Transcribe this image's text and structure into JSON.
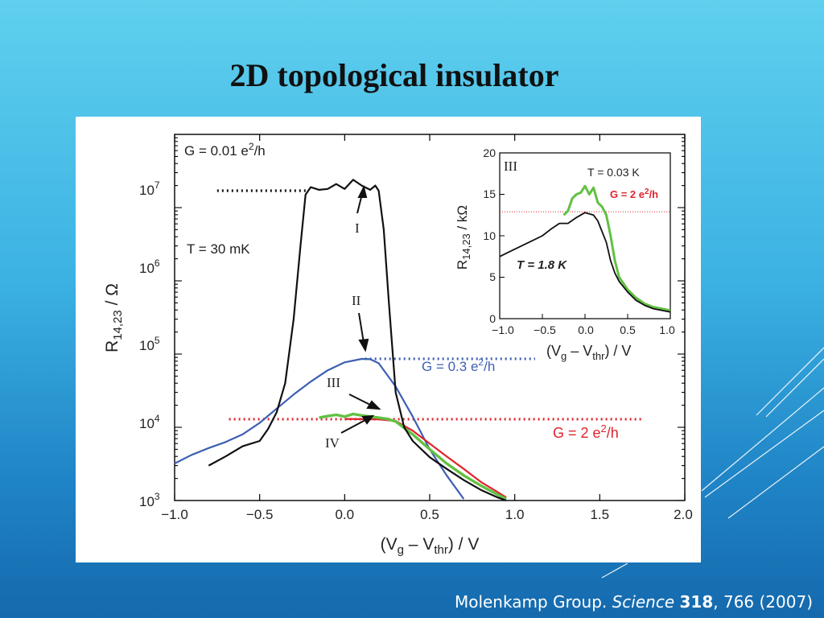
{
  "slide": {
    "title": "2D topological insulator",
    "citation": {
      "prefix": "Molenkamp Group. ",
      "journal": "Science",
      "volume": "318",
      "rest": ", 766 (2007)"
    }
  },
  "colors": {
    "background_top": "#5fd0ee",
    "background_bottom": "#1569ad",
    "curve_I": "#111111",
    "curve_II": "#3d5fb3",
    "curve_III": "#62c142",
    "curve_IV": "#e0242e",
    "annotation_red": "#e0242e",
    "annotation_blue": "#3d5fb3"
  },
  "chart_data": [
    {
      "type": "line",
      "yscale": "log",
      "xlabel_parts": [
        "(V",
        "g",
        " – V",
        "thr",
        ") / V"
      ],
      "ylabel_parts": [
        "R",
        "14,23",
        " / Ω"
      ],
      "xlim": [
        -1.0,
        2.0
      ],
      "ylim": [
        1000,
        100000000
      ],
      "xticks": [
        -1.0,
        -0.5,
        0.0,
        0.5,
        1.0,
        1.5,
        2.0
      ],
      "xtick_labels": [
        "−1.0",
        "−0.5",
        "0.0",
        "0.5",
        "1.0",
        "1.5",
        "2.0"
      ],
      "yticks": [
        1000,
        10000,
        100000,
        1000000,
        10000000
      ],
      "ytick_mantissa": "10",
      "ytick_exponents": [
        "3",
        "4",
        "5",
        "6",
        "7"
      ],
      "annotations": {
        "G_001": [
          "G = 0.01 e",
          "2",
          "/h"
        ],
        "G_03": [
          "G = 0.3 e",
          "2",
          "/h"
        ],
        "G_2": [
          "G = 2 e",
          "2",
          "/h"
        ],
        "temperature": "T = 30 mK"
      },
      "curve_labels": [
        "I",
        "II",
        "III",
        "IV"
      ],
      "reference_lines": [
        {
          "name": "G = 0.01 e2/h",
          "y": 17000000,
          "x_range": [
            -0.75,
            -0.22
          ],
          "style": "dotted",
          "color": "#111111"
        },
        {
          "name": "G = 0.3 e2/h",
          "y": 86000,
          "x_range": [
            0.12,
            1.12
          ],
          "style": "dotted",
          "color": "#3d5fb3"
        },
        {
          "name": "G = 2 e2/h",
          "y": 12900,
          "x_range": [
            -0.68,
            1.75
          ],
          "style": "dotted",
          "color": "#e0242e"
        }
      ],
      "series": [
        {
          "label": "I",
          "color": "#111111",
          "x": [
            -0.8,
            -0.7,
            -0.6,
            -0.5,
            -0.45,
            -0.4,
            -0.35,
            -0.3,
            -0.26,
            -0.23,
            -0.2,
            -0.15,
            -0.1,
            -0.05,
            0.0,
            0.05,
            0.1,
            0.15,
            0.18,
            0.2,
            0.23,
            0.26,
            0.3,
            0.35,
            0.4,
            0.5,
            0.6,
            0.7,
            0.8,
            0.9,
            0.95
          ],
          "y": [
            3000,
            4000,
            5500,
            6500,
            9500,
            16000,
            40000,
            300000,
            3000000,
            15000000,
            19000000,
            17500000,
            18000000,
            21000000,
            18000000,
            24000000,
            20000000,
            17500000,
            20000000,
            17000000,
            5000000,
            500000,
            30000,
            10000,
            6500,
            3900,
            2700,
            1900,
            1400,
            1100,
            1000
          ]
        },
        {
          "label": "II",
          "color": "#3d5fb3",
          "x": [
            -1.0,
            -0.9,
            -0.8,
            -0.7,
            -0.6,
            -0.5,
            -0.4,
            -0.3,
            -0.2,
            -0.1,
            0.0,
            0.1,
            0.15,
            0.2,
            0.3,
            0.4,
            0.5,
            0.6,
            0.7
          ],
          "y": [
            3200,
            4200,
            5200,
            6300,
            8000,
            11500,
            18000,
            28000,
            42000,
            60000,
            77000,
            86000,
            85000,
            75000,
            36000,
            14000,
            5000,
            2200,
            1050
          ]
        },
        {
          "label": "III",
          "color": "#62c142",
          "x": [
            -0.15,
            -0.1,
            -0.05,
            0.0,
            0.05,
            0.1,
            0.15,
            0.2,
            0.25,
            0.3,
            0.4,
            0.5,
            0.6,
            0.7,
            0.8,
            0.9,
            0.95
          ],
          "y": [
            13500,
            14200,
            14800,
            14000,
            15200,
            14500,
            14000,
            13500,
            13000,
            12000,
            8000,
            5000,
            3200,
            2200,
            1600,
            1200,
            1050
          ]
        },
        {
          "label": "IV",
          "color": "#e0242e",
          "x": [
            0.0,
            0.1,
            0.2,
            0.3,
            0.4,
            0.5,
            0.6,
            0.7,
            0.8,
            0.9,
            0.95
          ],
          "y": [
            13000,
            12900,
            12800,
            12200,
            9000,
            6000,
            4000,
            2700,
            1800,
            1300,
            1100
          ]
        }
      ]
    },
    {
      "type": "line",
      "yscale": "linear",
      "panel_label": "III",
      "xlabel_parts": [
        "(V",
        "g",
        " – V",
        "thr",
        ") / V"
      ],
      "ylabel_parts": [
        "R",
        "14,23",
        " / kΩ"
      ],
      "xlim": [
        -1.0,
        1.0
      ],
      "ylim": [
        0,
        20
      ],
      "xticks": [
        -1.0,
        -0.5,
        0.0,
        0.5,
        1.0
      ],
      "xtick_labels": [
        "−1.0",
        "−0.5",
        "0.0",
        "0.5",
        "1.0"
      ],
      "yticks": [
        0,
        5,
        10,
        15,
        20
      ],
      "ytick_labels": [
        "0",
        "5",
        "10",
        "15",
        "20"
      ],
      "annotations": {
        "T_low": "T = 0.03 K",
        "G_2": [
          "G = 2 e",
          "2",
          "/h"
        ],
        "T_high": "T = 1.8 K"
      },
      "reference_lines": [
        {
          "name": "G = 2 e2/h",
          "y": 12.9,
          "x_range": [
            -1.0,
            1.0
          ],
          "style": "dotted",
          "color": "#e0242e"
        }
      ],
      "series": [
        {
          "label": "T = 1.8 K",
          "color": "#111111",
          "x": [
            -1.0,
            -0.9,
            -0.8,
            -0.7,
            -0.6,
            -0.5,
            -0.4,
            -0.3,
            -0.2,
            -0.1,
            0.0,
            0.1,
            0.15,
            0.2,
            0.25,
            0.3,
            0.35,
            0.4,
            0.5,
            0.6,
            0.7,
            0.8,
            1.0
          ],
          "y": [
            7.5,
            8.0,
            8.5,
            9.0,
            9.5,
            10.0,
            10.8,
            11.5,
            11.5,
            12.2,
            12.8,
            12.5,
            11.8,
            10.5,
            9.2,
            7.0,
            5.5,
            4.5,
            3.2,
            2.2,
            1.6,
            1.2,
            0.8
          ]
        },
        {
          "label": "T = 0.03 K",
          "color": "#62c142",
          "x": [
            -0.25,
            -0.2,
            -0.15,
            -0.1,
            -0.05,
            0.0,
            0.05,
            0.1,
            0.15,
            0.2,
            0.25,
            0.3,
            0.35,
            0.4,
            0.5,
            0.6,
            0.7,
            0.8,
            1.0
          ],
          "y": [
            12.5,
            13.0,
            14.5,
            15.0,
            15.2,
            16.0,
            15.0,
            15.8,
            14.0,
            13.5,
            12.5,
            10.0,
            7.0,
            5.0,
            3.5,
            2.5,
            1.8,
            1.4,
            1.0
          ]
        }
      ]
    }
  ]
}
